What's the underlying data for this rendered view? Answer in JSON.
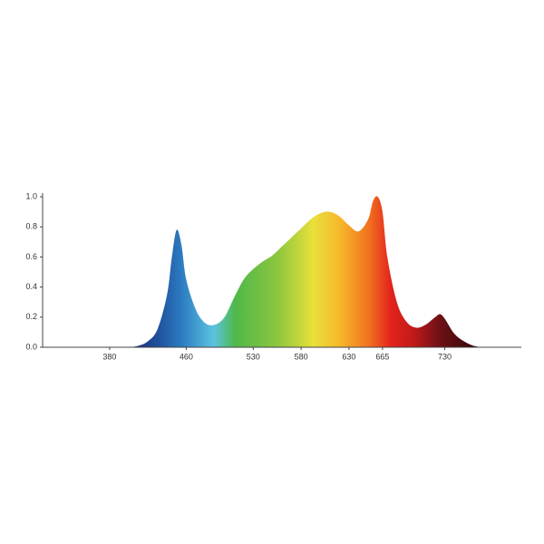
{
  "chart_data": {
    "type": "area",
    "x": [
      400,
      410,
      420,
      430,
      440,
      445,
      450,
      455,
      460,
      470,
      480,
      490,
      500,
      510,
      520,
      530,
      540,
      550,
      560,
      570,
      580,
      590,
      600,
      610,
      620,
      630,
      640,
      650,
      655,
      660,
      665,
      670,
      680,
      690,
      700,
      710,
      720,
      725,
      730,
      740,
      750,
      760,
      770
    ],
    "values": [
      0,
      0.01,
      0.04,
      0.12,
      0.35,
      0.6,
      0.78,
      0.68,
      0.45,
      0.25,
      0.16,
      0.15,
      0.2,
      0.33,
      0.45,
      0.52,
      0.57,
      0.61,
      0.67,
      0.73,
      0.79,
      0.85,
      0.89,
      0.9,
      0.87,
      0.81,
      0.77,
      0.85,
      0.97,
      1.0,
      0.9,
      0.6,
      0.3,
      0.17,
      0.13,
      0.15,
      0.2,
      0.22,
      0.19,
      0.09,
      0.04,
      0.01,
      0
    ],
    "xlim": [
      310,
      810
    ],
    "xticks": [
      380,
      460,
      530,
      580,
      630,
      665,
      730
    ],
    "ylim": [
      0,
      1
    ],
    "yticks": [
      {
        "value": 0,
        "label": "0.0"
      },
      0.2,
      0.4,
      0.6,
      0.8,
      {
        "value": 1,
        "label": "1.0"
      }
    ]
  }
}
